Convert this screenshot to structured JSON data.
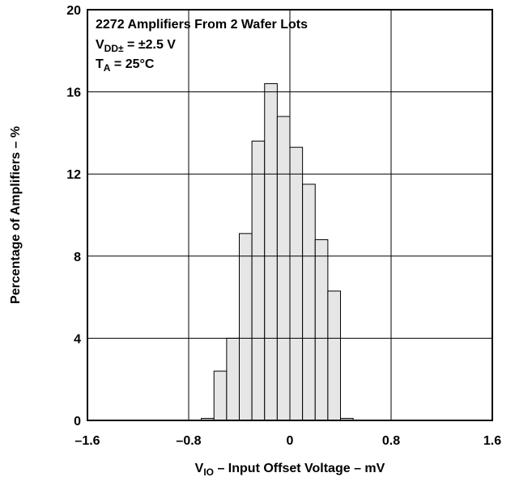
{
  "chart_data": {
    "type": "bar",
    "title": "",
    "xlabel": {
      "main": "V",
      "sub": "IO",
      "rest": " – Input Offset Voltage – mV"
    },
    "ylabel": "Percentage of Amplifiers – %",
    "xlim": [
      -1.6,
      1.6
    ],
    "ylim": [
      0,
      20
    ],
    "x_ticks": [
      -1.6,
      -0.8,
      0,
      0.8,
      1.6
    ],
    "x_tick_labels": [
      "–1.6",
      "–0.8",
      "0",
      "0.8",
      "1.6"
    ],
    "y_ticks": [
      0,
      4,
      8,
      12,
      16,
      20
    ],
    "y_tick_labels": [
      "0",
      "4",
      "8",
      "12",
      "16",
      "20"
    ],
    "grid": true,
    "bin_width": 0.1,
    "bins": [
      {
        "x0": -0.7,
        "x1": -0.6,
        "value": 0.1
      },
      {
        "x0": -0.6,
        "x1": -0.5,
        "value": 2.4
      },
      {
        "x0": -0.5,
        "x1": -0.4,
        "value": 4.0
      },
      {
        "x0": -0.4,
        "x1": -0.3,
        "value": 9.1
      },
      {
        "x0": -0.3,
        "x1": -0.2,
        "value": 13.6
      },
      {
        "x0": -0.2,
        "x1": -0.1,
        "value": 16.4
      },
      {
        "x0": -0.1,
        "x1": 0.0,
        "value": 14.8
      },
      {
        "x0": 0.0,
        "x1": 0.1,
        "value": 13.3
      },
      {
        "x0": 0.1,
        "x1": 0.2,
        "value": 11.5
      },
      {
        "x0": 0.2,
        "x1": 0.3,
        "value": 8.8
      },
      {
        "x0": 0.3,
        "x1": 0.4,
        "value": 6.3
      },
      {
        "x0": 0.4,
        "x1": 0.5,
        "value": 0.1
      }
    ],
    "bar_fill": "#e6e6e6",
    "annotations": {
      "line1": "2272 Amplifiers From 2 Wafer Lots",
      "line2": {
        "main": "V",
        "sub": "DD±",
        "rest": " = ±2.5 V"
      },
      "line3": {
        "main": "T",
        "sub": "A",
        "rest": " = 25°C"
      }
    }
  }
}
